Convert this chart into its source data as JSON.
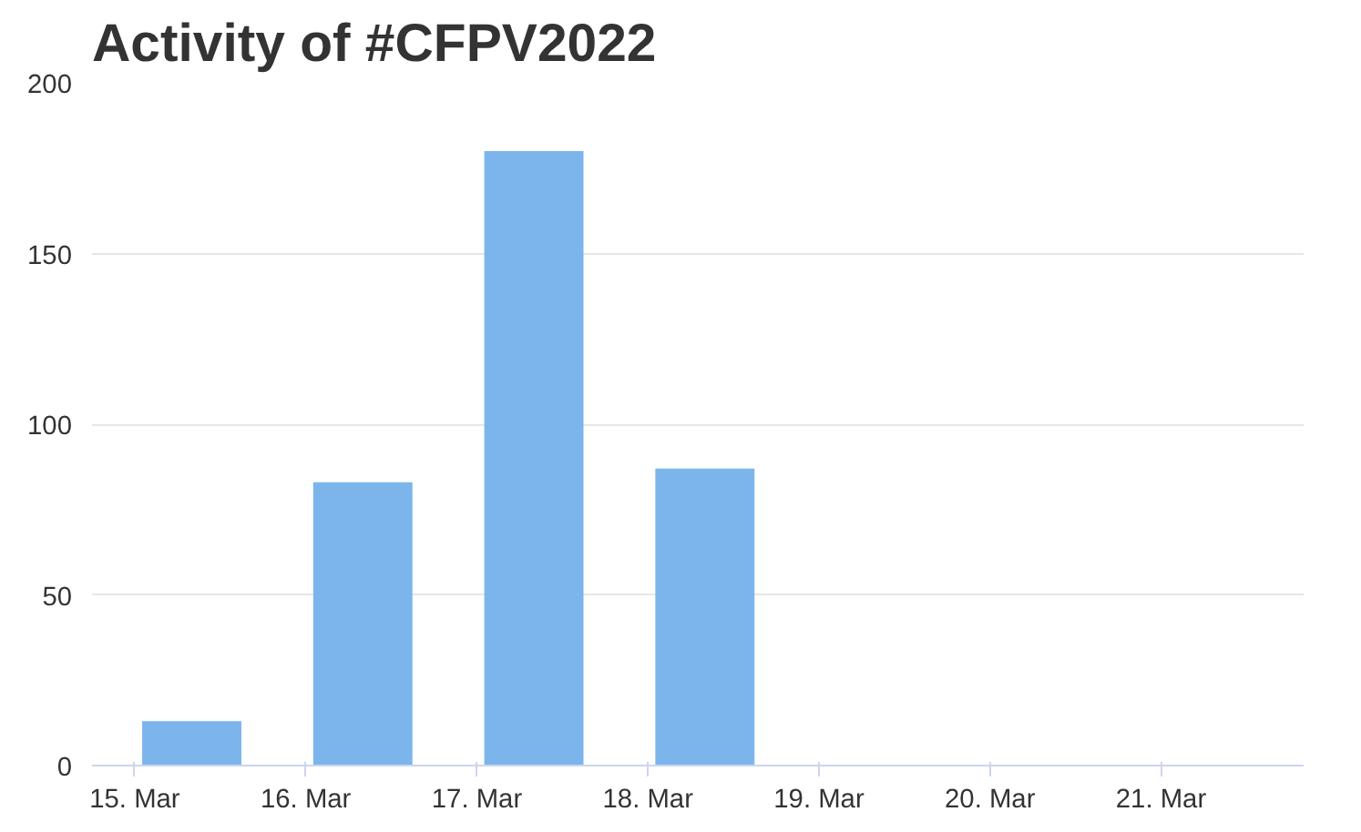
{
  "chart_data": {
    "type": "bar",
    "title": "Activity of #CFPV2022",
    "x": [
      "2022-03-15T08:00",
      "2022-03-16T08:00",
      "2022-03-17T08:00",
      "2022-03-18T08:00",
      "2022-03-19T08:00",
      "2022-03-20T08:00",
      "2022-03-21T08:00"
    ],
    "values": [
      13,
      83,
      180,
      87,
      0,
      0,
      0
    ],
    "color": "#7cb5ec",
    "xlim": [
      "2022-03-14T18:00",
      "2022-03-21T20:00"
    ],
    "xticks": [
      {
        "value": "2022-03-15",
        "label": "15. Mar"
      },
      {
        "value": "2022-03-16",
        "label": "16. Mar"
      },
      {
        "value": "2022-03-17",
        "label": "17. Mar"
      },
      {
        "value": "2022-03-18",
        "label": "18. Mar"
      },
      {
        "value": "2022-03-19",
        "label": "19. Mar"
      },
      {
        "value": "2022-03-20",
        "label": "20. Mar"
      },
      {
        "value": "2022-03-21",
        "label": "21. Mar"
      }
    ],
    "ylim": [
      0,
      200
    ],
    "yticks": [
      0,
      50,
      100,
      150,
      200
    ],
    "grid": "y"
  }
}
